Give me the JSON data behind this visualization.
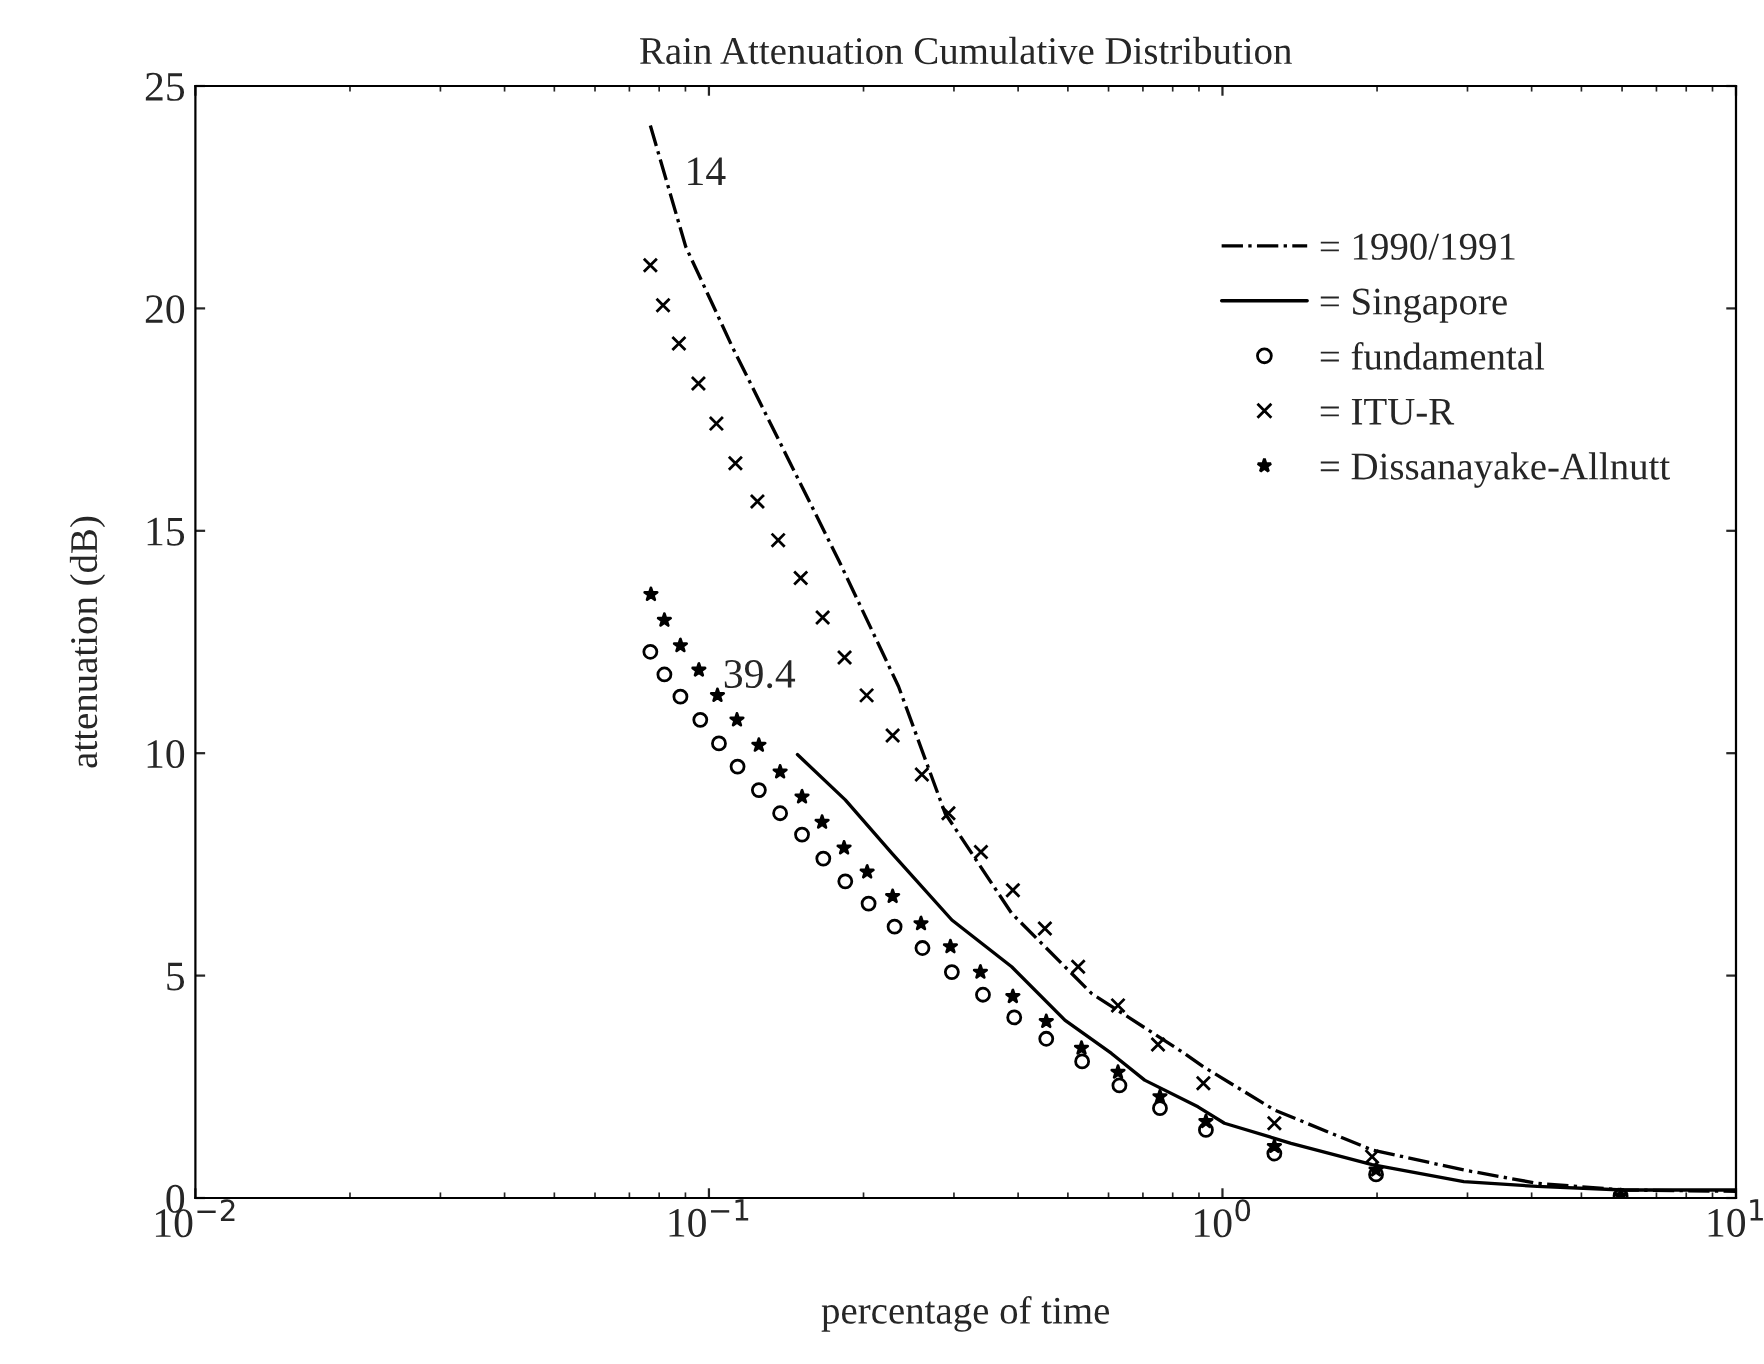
{
  "chart_data": {
    "type": "line",
    "title": "Rain Attenuation Cumulative Distribution",
    "xlabel": "percentage of time",
    "ylabel": "attenuation (dB)",
    "log": "x",
    "xlim": [
      0.01,
      10
    ],
    "xticks": [
      {
        "value": 0.01,
        "label": "10$^{−2}$"
      },
      {
        "value": 0.1,
        "label": "10$^{−1}$"
      },
      {
        "value": 1,
        "label": "10$^{0}$"
      },
      {
        "value": 10,
        "label": "10$^{1}$"
      }
    ],
    "ylim": [
      0,
      25
    ],
    "yticks": [
      0,
      5,
      10,
      15,
      20,
      25
    ],
    "grid": false,
    "legend": "top right",
    "annotations": [
      "14",
      "39.4"
    ],
    "series": [
      {
        "name": "= 1990/1991",
        "line_style": "dashdot",
        "marker": "none",
        "color": "#000000",
        "x": [
          0.0769,
          0.0901,
          0.111,
          0.1409,
          0.1789,
          0.234,
          0.2883,
          0.3886,
          0.5559,
          0.8435,
          0.918,
          1.262,
          1.956,
          2.95,
          4.1,
          6.04,
          10
        ],
        "values": [
          24.11,
          21.39,
          19.14,
          16.74,
          14.34,
          11.5,
          8.65,
          6.4,
          4.6,
          3.25,
          2.95,
          1.98,
          1.08,
          0.63,
          0.33,
          0.18,
          0.15
        ]
      },
      {
        "name": "= Singapore",
        "line_style": "solid",
        "marker": "none",
        "color": "#000000",
        "x": [
          0.1487,
          0.1843,
          0.2272,
          0.2972,
          0.3886,
          0.4932,
          0.608,
          0.7054,
          0.896,
          1.009,
          1.36,
          1.956,
          2.95,
          4.1,
          6.04,
          10
        ],
        "values": [
          9.97,
          8.95,
          7.75,
          6.25,
          5.2,
          4.0,
          3.25,
          2.65,
          2.05,
          1.68,
          1.23,
          0.75,
          0.37,
          0.26,
          0.18,
          0.18
        ]
      },
      {
        "name": "= fundamental",
        "type": "scatter",
        "marker": "circle",
        "color": "#000000",
        "x": [
          0.0769,
          0.0819,
          0.088,
          0.0962,
          0.1046,
          0.1137,
          0.1251,
          0.1376,
          0.1518,
          0.167,
          0.1843,
          0.2046,
          0.2299,
          0.2605,
          0.2972,
          0.3417,
          0.3931,
          0.4538,
          0.533,
          0.63,
          0.7556,
          0.9285,
          1.262,
          1.991,
          5.96
        ],
        "values": [
          12.28,
          11.77,
          11.27,
          10.75,
          10.22,
          9.7,
          9.17,
          8.65,
          8.17,
          7.63,
          7.12,
          6.62,
          6.1,
          5.62,
          5.08,
          4.57,
          4.06,
          3.58,
          3.07,
          2.53,
          2.02,
          1.53,
          1.0,
          0.53,
          0.05
        ]
      },
      {
        "name": "= ITU-R",
        "type": "scatter",
        "marker": "cross",
        "color": "#000000",
        "x": [
          0.0769,
          0.0814,
          0.0874,
          0.0954,
          0.1034,
          0.1126,
          0.1243,
          0.1364,
          0.1509,
          0.1665,
          0.1837,
          0.2028,
          0.2279,
          0.2598,
          0.2927,
          0.3386,
          0.3907,
          0.451,
          0.5236,
          0.626,
          0.749,
          0.918,
          1.262,
          1.956
        ],
        "values": [
          20.97,
          20.07,
          19.21,
          18.31,
          17.41,
          16.52,
          15.66,
          14.79,
          13.94,
          13.05,
          12.15,
          11.3,
          10.4,
          9.52,
          8.65,
          7.78,
          6.92,
          6.06,
          5.2,
          4.33,
          3.45,
          2.58,
          1.68,
          0.93
        ]
      },
      {
        "name": "= Dissanayake-Allnutt",
        "type": "scatter",
        "marker": "star",
        "color": "#000000",
        "x": [
          0.0771,
          0.0819,
          0.088,
          0.0956,
          0.1039,
          0.1134,
          0.1251,
          0.1376,
          0.1518,
          0.1661,
          0.1833,
          0.2033,
          0.2279,
          0.2588,
          0.2953,
          0.3378,
          0.3907,
          0.4538,
          0.5315,
          0.626,
          0.7556,
          0.9285,
          1.262,
          1.991,
          5.96
        ],
        "values": [
          13.57,
          12.99,
          12.42,
          11.87,
          11.3,
          10.75,
          10.18,
          9.58,
          9.02,
          8.45,
          7.87,
          7.33,
          6.78,
          6.17,
          5.65,
          5.08,
          4.53,
          3.97,
          3.37,
          2.83,
          2.28,
          1.72,
          1.16,
          0.63,
          0.05
        ]
      }
    ]
  }
}
